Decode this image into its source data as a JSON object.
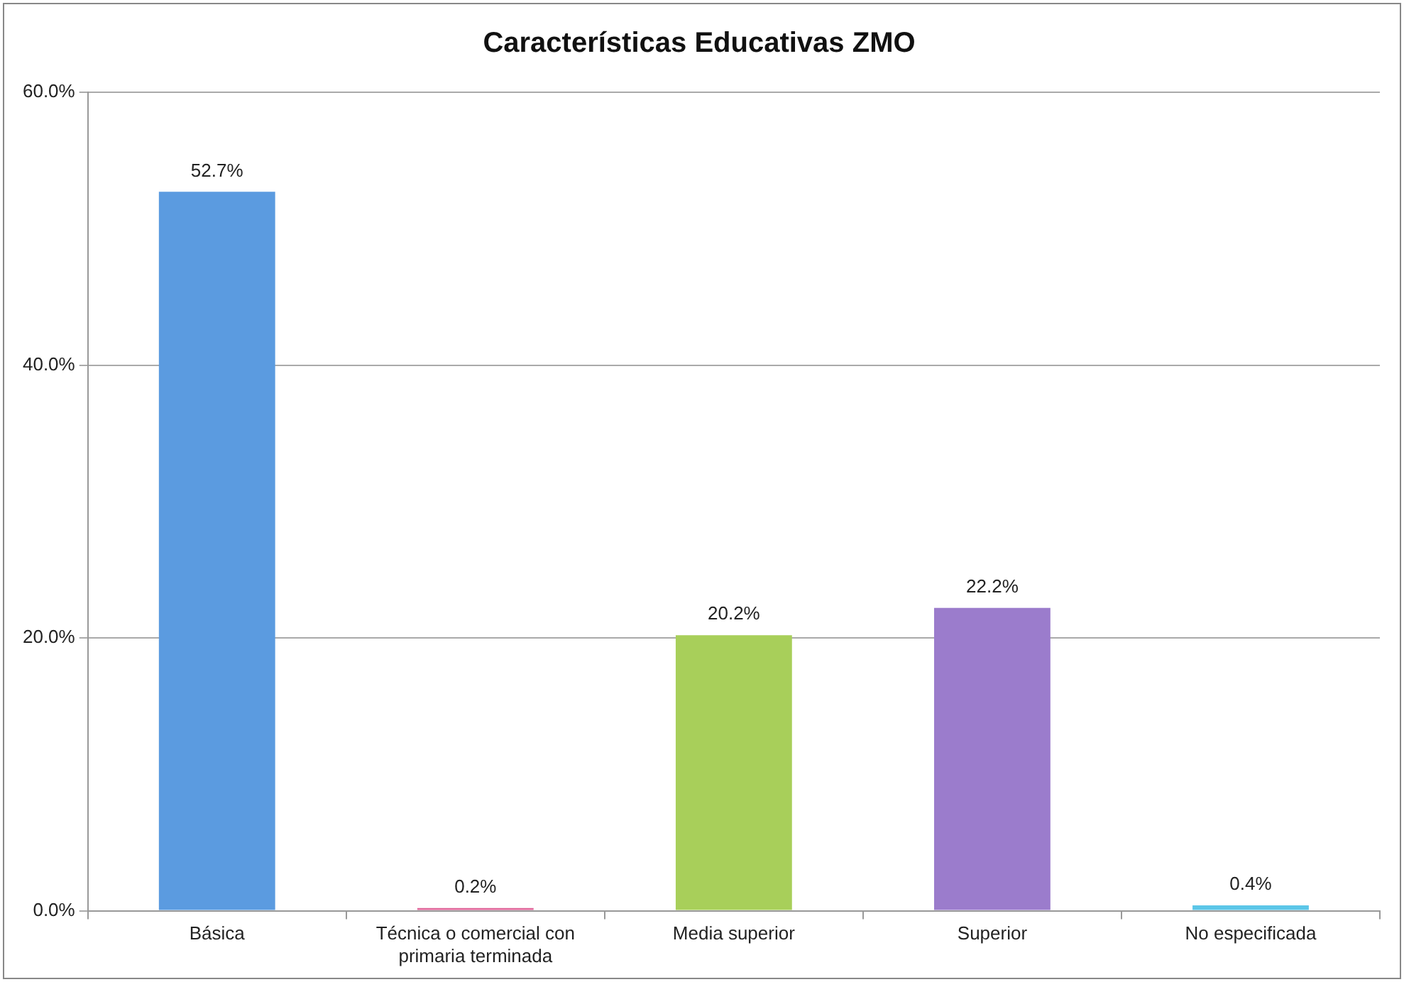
{
  "chart_data": {
    "type": "bar",
    "title": "Características Educativas ZMO",
    "categories": [
      "Básica",
      "Técnica o comercial con primaria terminada",
      "Media superior",
      "Superior",
      "No especificada"
    ],
    "values": [
      52.7,
      0.2,
      20.2,
      22.2,
      0.4
    ],
    "colors": [
      "#5b9be0",
      "#e0679a",
      "#a8cf5a",
      "#9b7ccc",
      "#5cc6e8"
    ],
    "value_labels": [
      "52.7%",
      "0.2%",
      "20.2%",
      "22.2%",
      "0.4%"
    ],
    "ylim": [
      0,
      60
    ],
    "yticks": [
      {
        "value": 0,
        "label": "0.0%"
      },
      {
        "value": 20,
        "label": "20.0%"
      },
      {
        "value": 40,
        "label": "40.0%"
      },
      {
        "value": 60,
        "label": "60.0%"
      }
    ],
    "grid": "y",
    "legend": false
  }
}
